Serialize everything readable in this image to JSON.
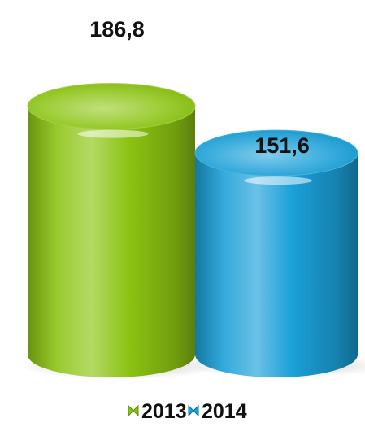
{
  "chart_data": {
    "type": "bar",
    "title": "",
    "xlabel": "",
    "ylabel": "",
    "categories": [
      "2013",
      "2014"
    ],
    "series": [
      {
        "name": "2013",
        "values": [
          186.8,
          null
        ],
        "color": "#8cc412"
      },
      {
        "name": "2014",
        "values": [
          null,
          151.6
        ],
        "color": "#1aa0d8"
      }
    ],
    "data_labels": [
      "186,8",
      "151,6"
    ],
    "ylim": [
      0,
      200
    ],
    "grid": false,
    "legend_placement": "bottom"
  }
}
